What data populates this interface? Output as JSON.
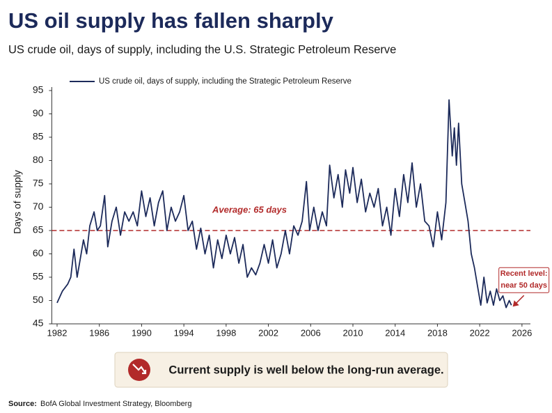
{
  "chart_data": {
    "type": "line",
    "title": "US oil supply has fallen sharply",
    "subtitle": "US crude oil, days of supply, including the U.S. Strategic Petroleum Reserve",
    "y_label": "Days of supply",
    "x": [
      1982.0,
      1982.5,
      1983.0,
      1983.3,
      1983.6,
      1983.9,
      1984.2,
      1984.5,
      1984.8,
      1985.1,
      1985.5,
      1985.8,
      1986.1,
      1986.5,
      1986.8,
      1987.2,
      1987.6,
      1988.0,
      1988.4,
      1988.8,
      1989.2,
      1989.6,
      1990.0,
      1990.4,
      1990.8,
      1991.2,
      1991.6,
      1992.0,
      1992.4,
      1992.8,
      1993.2,
      1993.6,
      1994.0,
      1994.4,
      1994.8,
      1995.2,
      1995.6,
      1996.0,
      1996.4,
      1996.8,
      1997.2,
      1997.6,
      1998.0,
      1998.4,
      1998.8,
      1999.2,
      1999.6,
      2000.0,
      2000.4,
      2000.8,
      2001.2,
      2001.6,
      2002.0,
      2002.4,
      2002.8,
      2003.2,
      2003.6,
      2004.0,
      2004.4,
      2004.8,
      2005.2,
      2005.6,
      2005.9,
      2006.3,
      2006.7,
      2007.1,
      2007.5,
      2007.8,
      2008.2,
      2008.6,
      2009.0,
      2009.3,
      2009.7,
      2010.0,
      2010.4,
      2010.8,
      2011.2,
      2011.6,
      2012.0,
      2012.4,
      2012.8,
      2013.2,
      2013.6,
      2014.0,
      2014.4,
      2014.8,
      2015.2,
      2015.6,
      2016.0,
      2016.4,
      2016.8,
      2017.2,
      2017.6,
      2018.0,
      2018.4,
      2018.8,
      2019.1,
      2019.4,
      2019.6,
      2019.8,
      2020.0,
      2020.3,
      2020.6,
      2020.9,
      2021.2,
      2021.5,
      2021.8,
      2022.1,
      2022.4,
      2022.7,
      2023.0,
      2023.3,
      2023.6,
      2023.9,
      2024.2,
      2024.5,
      2024.8,
      2025.0
    ],
    "series": [
      {
        "name": "US crude oil, days of supply, including the Strategic Petroleum Reserve",
        "color": "#1c2a5a",
        "values": [
          49.5,
          52,
          53.5,
          55,
          61,
          55,
          59,
          63,
          60,
          66,
          69,
          65,
          66,
          72.5,
          61.5,
          67,
          70,
          64,
          69,
          67,
          69,
          66,
          73.5,
          68,
          72,
          66,
          71,
          73.5,
          65,
          70,
          67,
          69,
          72.5,
          65,
          67,
          61,
          65.5,
          60,
          64,
          57,
          63,
          59,
          64,
          60,
          63.5,
          58,
          62,
          55,
          57,
          55.5,
          58,
          62,
          58,
          63,
          57,
          60,
          65,
          60,
          66,
          64,
          67,
          75.5,
          65,
          70,
          65,
          69,
          66,
          79,
          72,
          77,
          70,
          78,
          73,
          78.5,
          71,
          76,
          69,
          73,
          70,
          74,
          66,
          70,
          64,
          74,
          68,
          77,
          71,
          79.5,
          70,
          75,
          67,
          66,
          61.5,
          69,
          63,
          71,
          93,
          81,
          87,
          79,
          88,
          75,
          71,
          67,
          60,
          57,
          53,
          49,
          55,
          49.5,
          52,
          49,
          52.5,
          50,
          51,
          48.5,
          50,
          49
        ]
      }
    ],
    "xlim": [
      1981.5,
      2026.8
    ],
    "xticks": [
      1982,
      1986,
      1990,
      1994,
      1998,
      2002,
      2006,
      2010,
      2014,
      2018,
      2022,
      2026
    ],
    "ylim": [
      45,
      95
    ],
    "yticks": [
      45,
      50,
      55,
      60,
      65,
      70,
      75,
      80,
      85,
      90,
      95
    ],
    "average": {
      "value": 65,
      "label": "Average: 65 days",
      "color": "#b22a2a"
    },
    "annotation": {
      "x": 2025.0,
      "y": 49,
      "lines": [
        "Recent level:",
        "near 50 days"
      ]
    }
  },
  "callout": "Current supply is well below the long-run average.",
  "source": {
    "label": "Source:",
    "text": "BofA Global Investment Strategy, Bloomberg"
  }
}
